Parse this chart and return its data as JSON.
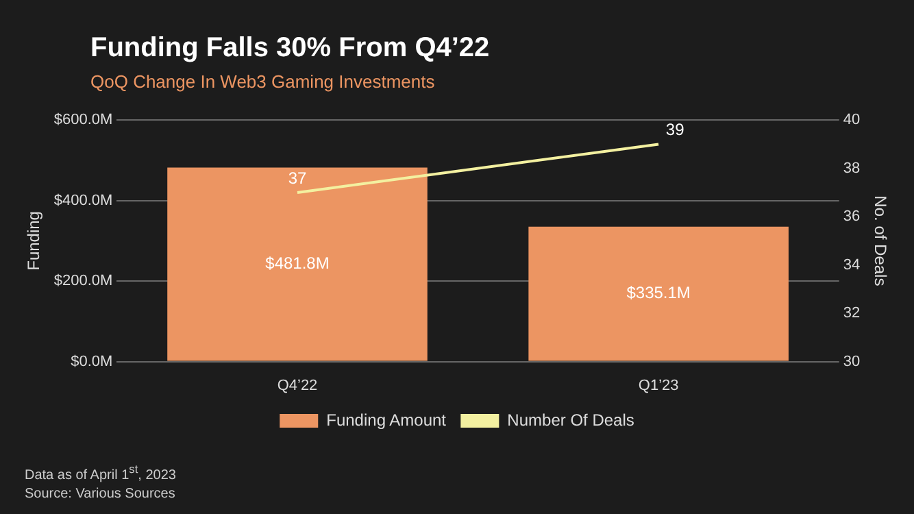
{
  "chart_data": {
    "type": "bar",
    "title": "Funding Falls 30% From Q4’22",
    "subtitle": "QoQ Change In Web3 Gaming Investments",
    "ylabel": "Funding",
    "y2label": "No. of Deals",
    "categories": [
      "Q4’22",
      "Q1’23"
    ],
    "series": [
      {
        "name": "Funding Amount",
        "color": "#ec9562",
        "values": [
          481.8,
          335.1
        ],
        "value_labels": [
          "$481.8M",
          "$335.1M"
        ]
      },
      {
        "name": "Number Of Deals",
        "type": "line",
        "axis": "y2",
        "color": "#f3f0a0",
        "values": [
          37,
          39
        ],
        "value_labels": [
          "37",
          "39"
        ]
      }
    ],
    "ylim": [
      0,
      600
    ],
    "yticks": [
      {
        "value": 0,
        "label": "$0.0M"
      },
      {
        "value": 200,
        "label": "$200.0M"
      },
      {
        "value": 400,
        "label": "$400.0M"
      },
      {
        "value": 600,
        "label": "$600.0M"
      }
    ],
    "y2lim": [
      30,
      40
    ],
    "y2ticks": [
      30,
      32,
      34,
      36,
      38,
      40
    ],
    "grid": "y",
    "legend": "bottom",
    "marker": "none",
    "line_style": "solid",
    "annotations": [
      "Data as of April 1$^{st}$, 2023",
      "Source: Various Sources"
    ]
  }
}
